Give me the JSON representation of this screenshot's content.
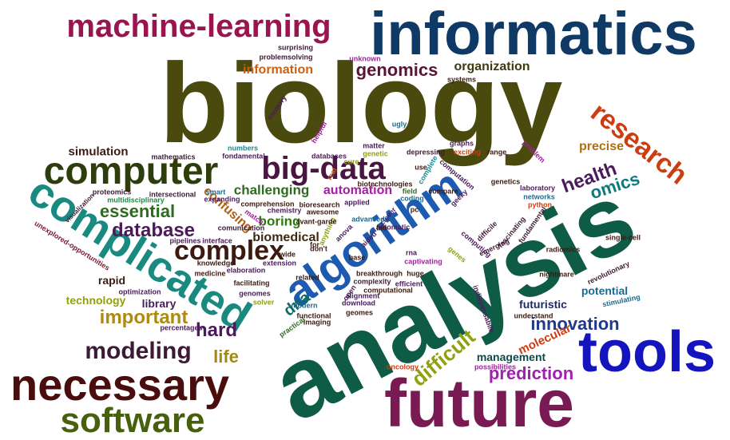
{
  "words": [
    {
      "text": "biology",
      "color": "#4a4a0e"
    },
    {
      "text": "analysis",
      "color": "#0e5c45"
    },
    {
      "text": "informatics",
      "color": "#0f3a66"
    },
    {
      "text": "future",
      "color": "#7a1a52"
    },
    {
      "text": "tools",
      "color": "#1515c0"
    },
    {
      "text": "machine-learning",
      "color": "#9a1550"
    },
    {
      "text": "computer",
      "color": "#2e3d0c"
    },
    {
      "text": "complicated",
      "color": "#1a8a80"
    },
    {
      "text": "necessary",
      "color": "#4a0d0d"
    },
    {
      "text": "software",
      "color": "#46600d"
    },
    {
      "text": "algorithm",
      "color": "#1c5bb0"
    },
    {
      "text": "big-data",
      "color": "#4a1540"
    },
    {
      "text": "complex",
      "color": "#3d1a10"
    },
    {
      "text": "modeling",
      "color": "#3d1a35"
    },
    {
      "text": "research",
      "color": "#cc3d10"
    },
    {
      "text": "genomics",
      "color": "#5a1535"
    },
    {
      "text": "innovation",
      "color": "#1f3a8a"
    },
    {
      "text": "health",
      "color": "#4a1a5a"
    },
    {
      "text": "omics",
      "color": "#0e7a80"
    },
    {
      "text": "important",
      "color": "#b08a10"
    },
    {
      "text": "essential",
      "color": "#2e6a20"
    },
    {
      "text": "database",
      "color": "#4a1a5a"
    },
    {
      "text": "hard",
      "color": "#4a1a5a"
    },
    {
      "text": "difficult",
      "color": "#90a010"
    },
    {
      "text": "prediction",
      "color": "#a020b0"
    },
    {
      "text": "information",
      "color": "#cc6010"
    },
    {
      "text": "dna",
      "color": "#0e6a60"
    },
    {
      "text": "life",
      "color": "#a08a10"
    },
    {
      "text": "challenging",
      "color": "#2e6a20"
    },
    {
      "text": "automation",
      "color": "#a020a0"
    },
    {
      "text": "biomedical",
      "color": "#3d2a10"
    },
    {
      "text": "boring",
      "color": "#2e7a10"
    },
    {
      "text": "confusing",
      "color": "#b06010"
    },
    {
      "text": "organization",
      "color": "#3d3a10"
    },
    {
      "text": "precise",
      "color": "#b07010"
    },
    {
      "text": "simulation",
      "color": "#3d1a10"
    },
    {
      "text": "futuristic",
      "color": "#1a2a6a"
    },
    {
      "text": "management",
      "color": "#0e4a4a"
    },
    {
      "text": "molecular",
      "color": "#cc3d10"
    },
    {
      "text": "potential",
      "color": "#1a6a90"
    },
    {
      "text": "technology",
      "color": "#90a010"
    },
    {
      "text": "library",
      "color": "#4a1a5a"
    },
    {
      "text": "rapid",
      "color": "#3d1a10"
    },
    {
      "text": "mathematics",
      "color": "#3d1a35"
    },
    {
      "text": "fondamental",
      "color": "#4a1a5a"
    },
    {
      "text": "numbers",
      "color": "#1a8a90"
    },
    {
      "text": "proteomics",
      "color": "#3d1a35"
    },
    {
      "text": "multidisciplinary",
      "color": "#1a8a40"
    },
    {
      "text": "intersectional",
      "color": "#3d1a35"
    },
    {
      "text": "smart",
      "color": "#1a6a90"
    },
    {
      "text": "expanding",
      "color": "#4a1a5a"
    },
    {
      "text": "visualization",
      "color": "#3d1a35"
    },
    {
      "text": "unexplored-opportunities",
      "color": "#7a1a35"
    },
    {
      "text": "pipelines",
      "color": "#4a1a5a"
    },
    {
      "text": "interface",
      "color": "#4a1a5a"
    },
    {
      "text": "knowledge",
      "color": "#3d1a10"
    },
    {
      "text": "medicine",
      "color": "#3d1a10"
    },
    {
      "text": "elaboration",
      "color": "#4a1a5a"
    },
    {
      "text": "facilitating",
      "color": "#3d1a10"
    },
    {
      "text": "genomes",
      "color": "#4a1a5a"
    },
    {
      "text": "solver",
      "color": "#90a010"
    },
    {
      "text": "modern",
      "color": "#1a6a90"
    },
    {
      "text": "practical",
      "color": "#2e6a20"
    },
    {
      "text": "imaging",
      "color": "#3d1a10"
    },
    {
      "text": "functional",
      "color": "#3d1a10"
    },
    {
      "text": "optimization",
      "color": "#4a1a5a"
    },
    {
      "text": "percentages",
      "color": "#4a1a5a"
    },
    {
      "text": "extension",
      "color": "#4a1a5a"
    },
    {
      "text": "don't",
      "color": "#3d1a10"
    },
    {
      "text": "base",
      "color": "#3d1a10"
    },
    {
      "text": "anova",
      "color": "#4a1a5a"
    },
    {
      "text": "related",
      "color": "#3d1a10"
    },
    {
      "text": "breakthrough",
      "color": "#3d1a10"
    },
    {
      "text": "complexity",
      "color": "#3d1a35"
    },
    {
      "text": "huge",
      "color": "#3d1a10"
    },
    {
      "text": "efficient",
      "color": "#4a1a5a"
    },
    {
      "text": "computational",
      "color": "#3d1a10"
    },
    {
      "text": "download",
      "color": "#4a1a5a"
    },
    {
      "text": "geomes",
      "color": "#3d1a10"
    },
    {
      "text": "oncology",
      "color": "#cc3d10"
    },
    {
      "text": "possibilities",
      "color": "#a020a0"
    },
    {
      "text": "captivating",
      "color": "#a020a0"
    },
    {
      "text": "indispensabile",
      "color": "#4a1a5a"
    },
    {
      "text": "genes",
      "color": "#90a010"
    },
    {
      "text": "emerging",
      "color": "#3d1a35"
    },
    {
      "text": "computing",
      "color": "#4a1a5a"
    },
    {
      "text": "difficile",
      "color": "#3d1a35"
    },
    {
      "text": "fascinating",
      "color": "#3d1a35"
    },
    {
      "text": "fundamental",
      "color": "#3d1a35"
    },
    {
      "text": "radiomics",
      "color": "#3d1a10"
    },
    {
      "text": "single-cell",
      "color": "#3d1a10"
    },
    {
      "text": "nightmare",
      "color": "#3d1a10"
    },
    {
      "text": "revolutionary",
      "color": "#3d1a35"
    },
    {
      "text": "stimulating",
      "color": "#1a6a90"
    },
    {
      "text": "understand",
      "color": "#3d1a10"
    },
    {
      "text": "python",
      "color": "#cc3d10"
    },
    {
      "text": "networks",
      "color": "#1a6a90"
    },
    {
      "text": "laboratory",
      "color": "#4a1a5a"
    },
    {
      "text": "genetics",
      "color": "#3d1a10"
    },
    {
      "text": "ugly",
      "color": "#1a6a90"
    },
    {
      "text": "matter",
      "color": "#4a1a5a"
    },
    {
      "text": "genetic",
      "color": "#90a010"
    },
    {
      "text": "graphs",
      "color": "#4a1a5a"
    },
    {
      "text": "depressing",
      "color": "#3d1a35"
    },
    {
      "text": "exciting",
      "color": "#cc3d10"
    },
    {
      "text": "range",
      "color": "#3d1a10"
    },
    {
      "text": "problem",
      "color": "#a020a0"
    },
    {
      "text": "computation",
      "color": "#4a1a5a"
    },
    {
      "text": "complete",
      "color": "#1a8a90"
    },
    {
      "text": "use",
      "color": "#3d1a10"
    },
    {
      "text": "compare",
      "color": "#3d1a10"
    },
    {
      "text": "geeky",
      "color": "#4a1a5a"
    },
    {
      "text": "pc",
      "color": "#3d1a10"
    },
    {
      "text": "biotechnologies",
      "color": "#3d1a10"
    },
    {
      "text": "field",
      "color": "#2e6a20"
    },
    {
      "text": "coding",
      "color": "#1a6a90"
    },
    {
      "text": "clever",
      "color": "#4a1a5a"
    },
    {
      "text": "automatic",
      "color": "#4a1a5a"
    },
    {
      "text": "bio",
      "color": "#3d1a10"
    },
    {
      "text": "advanced",
      "color": "#1a6a90"
    },
    {
      "text": "applied",
      "color": "#4a1a5a"
    },
    {
      "text": "aided",
      "color": "#4a1a5a"
    },
    {
      "text": "alignment",
      "color": "#4a1a5a"
    },
    {
      "text": "open",
      "color": "#4a1a5a"
    },
    {
      "text": "bioresearch",
      "color": "#3d1a10"
    },
    {
      "text": "awesome",
      "color": "#3d1a10"
    },
    {
      "text": "chemistry",
      "color": "#4a1a5a"
    },
    {
      "text": "comprehension",
      "color": "#3d1a10"
    },
    {
      "text": "wide",
      "color": "#3d1a10"
    },
    {
      "text": "anything",
      "color": "#90a010"
    },
    {
      "text": "avant-garde",
      "color": "#3d1a10"
    },
    {
      "text": "match",
      "color": "#a020a0"
    },
    {
      "text": "comunication",
      "color": "#3d1a35"
    },
    {
      "text": "for",
      "color": "#3d1a10"
    },
    {
      "text": "real",
      "color": "#cc6010"
    },
    {
      "text": "cure",
      "color": "#90a010"
    },
    {
      "text": "databases",
      "color": "#4a1a5a"
    },
    {
      "text": "helpful",
      "color": "#a020a0"
    },
    {
      "text": "memory",
      "color": "#4a1a5a"
    },
    {
      "text": "problemsolving",
      "color": "#3d1a35"
    },
    {
      "text": "surprising",
      "color": "#3d1a35"
    },
    {
      "text": "unknown",
      "color": "#a020a0"
    },
    {
      "text": "systems",
      "color": "#3d1a10"
    },
    {
      "text": "rna",
      "color": "#4a1a5a"
    }
  ]
}
